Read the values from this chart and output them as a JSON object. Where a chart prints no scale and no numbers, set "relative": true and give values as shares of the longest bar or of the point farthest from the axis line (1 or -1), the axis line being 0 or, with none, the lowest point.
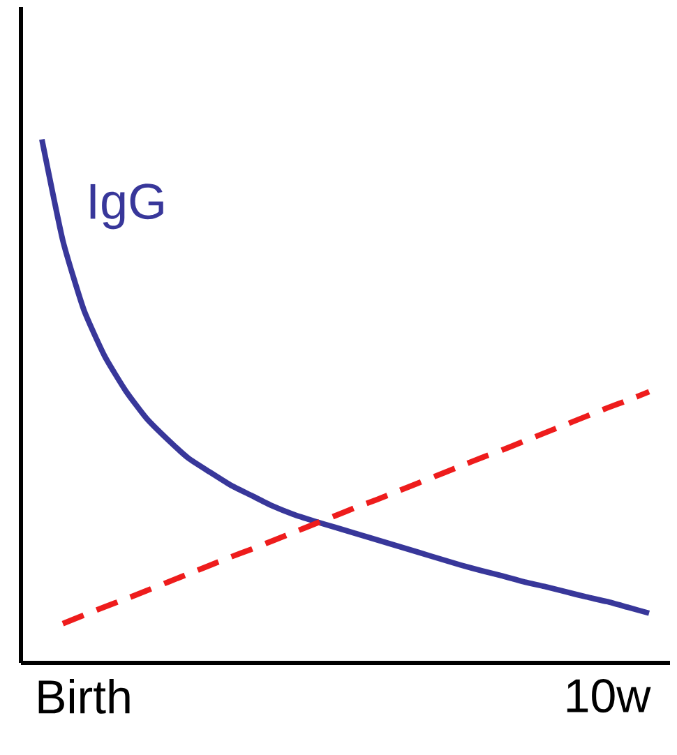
{
  "chart_data": {
    "type": "line",
    "relative": true,
    "tick_labels": "x",
    "categories": [
      null,
      null,
      "Birth",
      null,
      null,
      null,
      null,
      null,
      null,
      null,
      null,
      null,
      null,
      null,
      null,
      null,
      null,
      null,
      null,
      null,
      null,
      null,
      null,
      null,
      null,
      null,
      null,
      "10w",
      null,
      null
    ],
    "series": [
      {
        "name": "IgG",
        "color": "#38379a",
        "line_style": "solid",
        "values": [
          1.0,
          0.807,
          0.675,
          0.586,
          0.52,
          0.467,
          0.427,
          0.391,
          0.365,
          0.34,
          0.32,
          0.3,
          0.284,
          0.271,
          0.259,
          0.247,
          0.235,
          0.223,
          0.211,
          0.199,
          0.187,
          0.176,
          0.166,
          0.155,
          0.146,
          0.136,
          0.126,
          0.117,
          0.106,
          0.095
        ]
      },
      {
        "color": "#ee1c1c",
        "line_style": "dashed",
        "values": [
          null,
          0.075,
          0.091,
          0.107,
          0.122,
          0.138,
          0.154,
          0.17,
          0.186,
          0.202,
          0.217,
          0.233,
          0.249,
          0.265,
          0.281,
          0.297,
          0.312,
          0.328,
          0.344,
          0.36,
          0.376,
          0.392,
          0.407,
          0.423,
          0.439,
          0.455,
          0.471,
          0.487,
          0.502,
          0.518
        ]
      }
    ]
  }
}
